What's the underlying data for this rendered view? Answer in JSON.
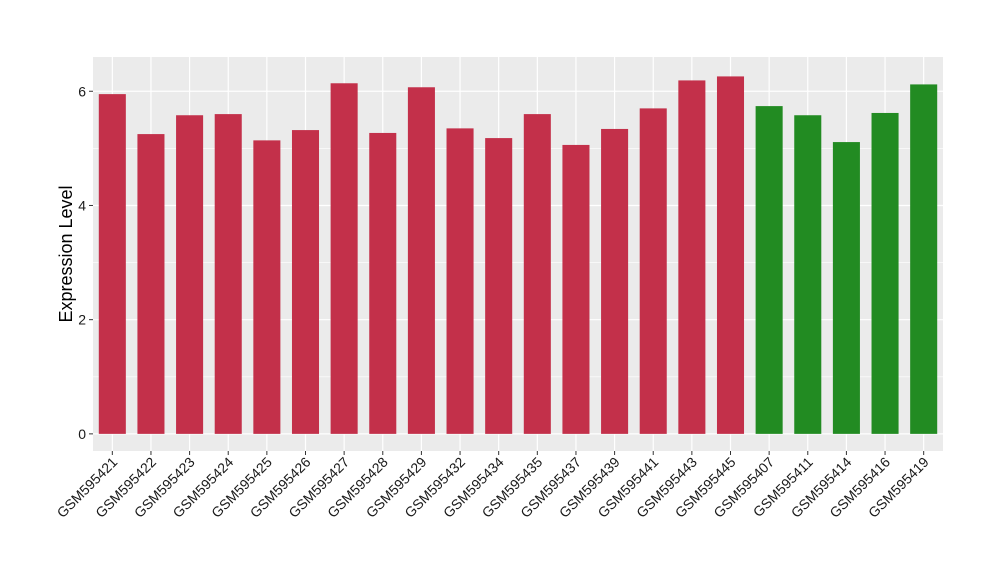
{
  "chart_data": {
    "type": "bar",
    "title": "",
    "xlabel": "",
    "ylabel": "Expression Level",
    "ylim": [
      -0.3,
      6.6
    ],
    "yticks": [
      0,
      2,
      4,
      6
    ],
    "grid": true,
    "categories": [
      "GSM595421",
      "GSM595422",
      "GSM595423",
      "GSM595424",
      "GSM595425",
      "GSM595426",
      "GSM595427",
      "GSM595428",
      "GSM595429",
      "GSM595432",
      "GSM595434",
      "GSM595435",
      "GSM595437",
      "GSM595439",
      "GSM595441",
      "GSM595443",
      "GSM595445",
      "GSM595407",
      "GSM595411",
      "GSM595414",
      "GSM595416",
      "GSM595419"
    ],
    "values": [
      5.95,
      5.25,
      5.58,
      5.6,
      5.14,
      5.32,
      6.14,
      5.27,
      6.07,
      5.35,
      5.18,
      5.6,
      5.06,
      5.34,
      5.7,
      6.19,
      6.26,
      5.74,
      5.58,
      5.11,
      5.62,
      6.12
    ],
    "groups": [
      "a",
      "a",
      "a",
      "a",
      "a",
      "a",
      "a",
      "a",
      "a",
      "a",
      "a",
      "a",
      "a",
      "a",
      "a",
      "a",
      "a",
      "b",
      "b",
      "b",
      "b",
      "b"
    ],
    "colors": {
      "a": "#C3304A",
      "b": "#228B22"
    }
  }
}
